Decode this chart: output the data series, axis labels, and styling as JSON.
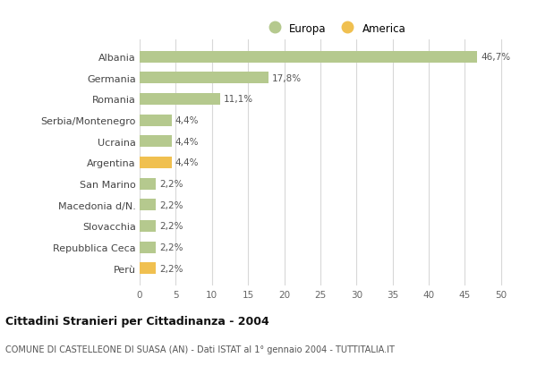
{
  "categories": [
    "Albania",
    "Germania",
    "Romania",
    "Serbia/Montenegro",
    "Ucraina",
    "Argentina",
    "San Marino",
    "Macedonia d/N.",
    "Slovacchia",
    "Repubblica Ceca",
    "Perù"
  ],
  "values": [
    46.7,
    17.8,
    11.1,
    4.4,
    4.4,
    4.4,
    2.2,
    2.2,
    2.2,
    2.2,
    2.2
  ],
  "labels": [
    "46,7%",
    "17,8%",
    "11,1%",
    "4,4%",
    "4,4%",
    "4,4%",
    "2,2%",
    "2,2%",
    "2,2%",
    "2,2%",
    "2,2%"
  ],
  "colors": [
    "#b5c98e",
    "#b5c98e",
    "#b5c98e",
    "#b5c98e",
    "#b5c98e",
    "#f0c050",
    "#b5c98e",
    "#b5c98e",
    "#b5c98e",
    "#b5c98e",
    "#f0c050"
  ],
  "europa_color": "#b5c98e",
  "america_color": "#f0c050",
  "legend_europa": "Europa",
  "legend_america": "America",
  "xlim": [
    0,
    52
  ],
  "xticks": [
    0,
    5,
    10,
    15,
    20,
    25,
    30,
    35,
    40,
    45,
    50
  ],
  "title": "Cittadini Stranieri per Cittadinanza - 2004",
  "subtitle": "COMUNE DI CASTELLEONE DI SUASA (AN) - Dati ISTAT al 1° gennaio 2004 - TUTTITALIA.IT",
  "background_color": "#ffffff",
  "bar_height": 0.55,
  "grid_color": "#d8d8d8",
  "label_fontsize": 7.5,
  "ytick_fontsize": 8,
  "xtick_fontsize": 7.5
}
